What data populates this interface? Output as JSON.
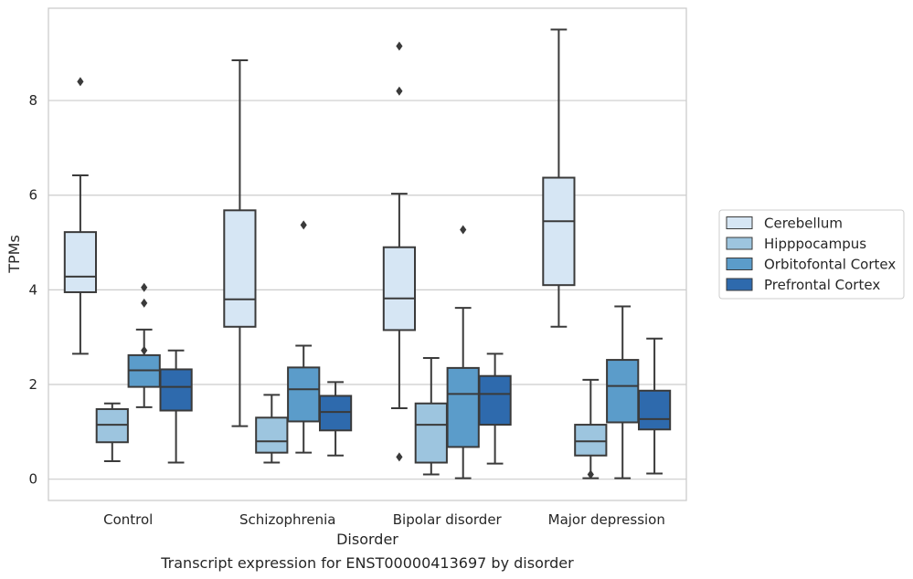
{
  "chart_data": {
    "type": "box",
    "title": "Transcript expression for ENST00000413697 by disorder",
    "xlabel": "Disorder",
    "ylabel": "TPMs",
    "ylim": [
      -0.45,
      9.95
    ],
    "yticks": [
      0,
      2,
      4,
      6,
      8
    ],
    "grid": "horizontal",
    "legend_position": "right",
    "categories": [
      "Control",
      "Schizophrenia",
      "Bipolar disorder",
      "Major depression"
    ],
    "series": [
      {
        "name": "Cerebellum",
        "color": "#d6e6f4",
        "boxes": [
          {
            "whisker_low": 2.65,
            "q1": 3.95,
            "median": 4.28,
            "q3": 5.22,
            "whisker_high": 6.42,
            "outliers": [
              8.4
            ]
          },
          {
            "whisker_low": 1.12,
            "q1": 3.22,
            "median": 3.8,
            "q3": 5.68,
            "whisker_high": 8.85,
            "outliers": []
          },
          {
            "whisker_low": 1.5,
            "q1": 3.15,
            "median": 3.82,
            "q3": 4.9,
            "whisker_high": 6.03,
            "outliers": [
              9.15,
              8.2,
              0.47
            ]
          },
          {
            "whisker_low": 3.22,
            "q1": 4.1,
            "median": 5.45,
            "q3": 6.37,
            "whisker_high": 9.5,
            "outliers": []
          }
        ]
      },
      {
        "name": "Hipppocampus",
        "color": "#9dc5df",
        "boxes": [
          {
            "whisker_low": 0.38,
            "q1": 0.78,
            "median": 1.15,
            "q3": 1.48,
            "whisker_high": 1.6,
            "outliers": []
          },
          {
            "whisker_low": 0.35,
            "q1": 0.56,
            "median": 0.8,
            "q3": 1.3,
            "whisker_high": 1.78,
            "outliers": []
          },
          {
            "whisker_low": 0.1,
            "q1": 0.35,
            "median": 1.15,
            "q3": 1.6,
            "whisker_high": 2.56,
            "outliers": []
          },
          {
            "whisker_low": 0.02,
            "q1": 0.5,
            "median": 0.8,
            "q3": 1.15,
            "whisker_high": 2.1,
            "outliers": [
              0.1
            ]
          }
        ]
      },
      {
        "name": "Orbitofontal Cortex",
        "color": "#5b9cca",
        "boxes": [
          {
            "whisker_low": 1.52,
            "q1": 1.95,
            "median": 2.3,
            "q3": 2.62,
            "whisker_high": 3.16,
            "outliers": [
              4.05,
              3.72,
              2.72
            ]
          },
          {
            "whisker_low": 0.56,
            "q1": 1.22,
            "median": 1.9,
            "q3": 2.36,
            "whisker_high": 2.82,
            "outliers": [
              5.37
            ]
          },
          {
            "whisker_low": 0.02,
            "q1": 0.68,
            "median": 1.8,
            "q3": 2.35,
            "whisker_high": 3.62,
            "outliers": [
              5.27
            ]
          },
          {
            "whisker_low": 0.02,
            "q1": 1.2,
            "median": 1.97,
            "q3": 2.52,
            "whisker_high": 3.65,
            "outliers": []
          }
        ]
      },
      {
        "name": "Prefrontal Cortex",
        "color": "#2e6aad",
        "boxes": [
          {
            "whisker_low": 0.35,
            "q1": 1.45,
            "median": 1.95,
            "q3": 2.32,
            "whisker_high": 2.72,
            "outliers": []
          },
          {
            "whisker_low": 0.5,
            "q1": 1.03,
            "median": 1.42,
            "q3": 1.76,
            "whisker_high": 2.05,
            "outliers": []
          },
          {
            "whisker_low": 0.33,
            "q1": 1.15,
            "median": 1.8,
            "q3": 2.18,
            "whisker_high": 2.65,
            "outliers": []
          },
          {
            "whisker_low": 0.12,
            "q1": 1.05,
            "median": 1.27,
            "q3": 1.87,
            "whisker_high": 2.97,
            "outliers": []
          }
        ]
      }
    ]
  }
}
